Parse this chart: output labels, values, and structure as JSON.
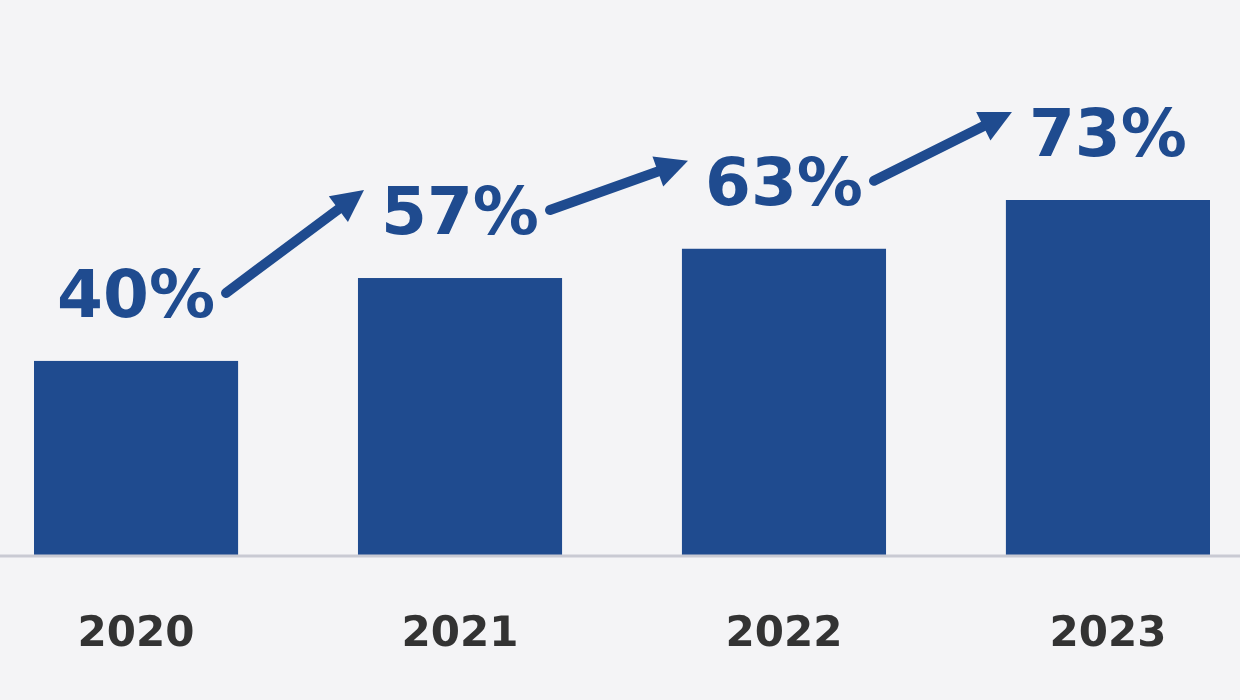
{
  "chart_data": {
    "type": "bar",
    "categories": [
      "2020",
      "2021",
      "2022",
      "2023"
    ],
    "values": [
      40,
      57,
      63,
      73
    ],
    "value_labels": [
      "40%",
      "57%",
      "63%",
      "73%"
    ],
    "color": "#1f4b8f"
  }
}
